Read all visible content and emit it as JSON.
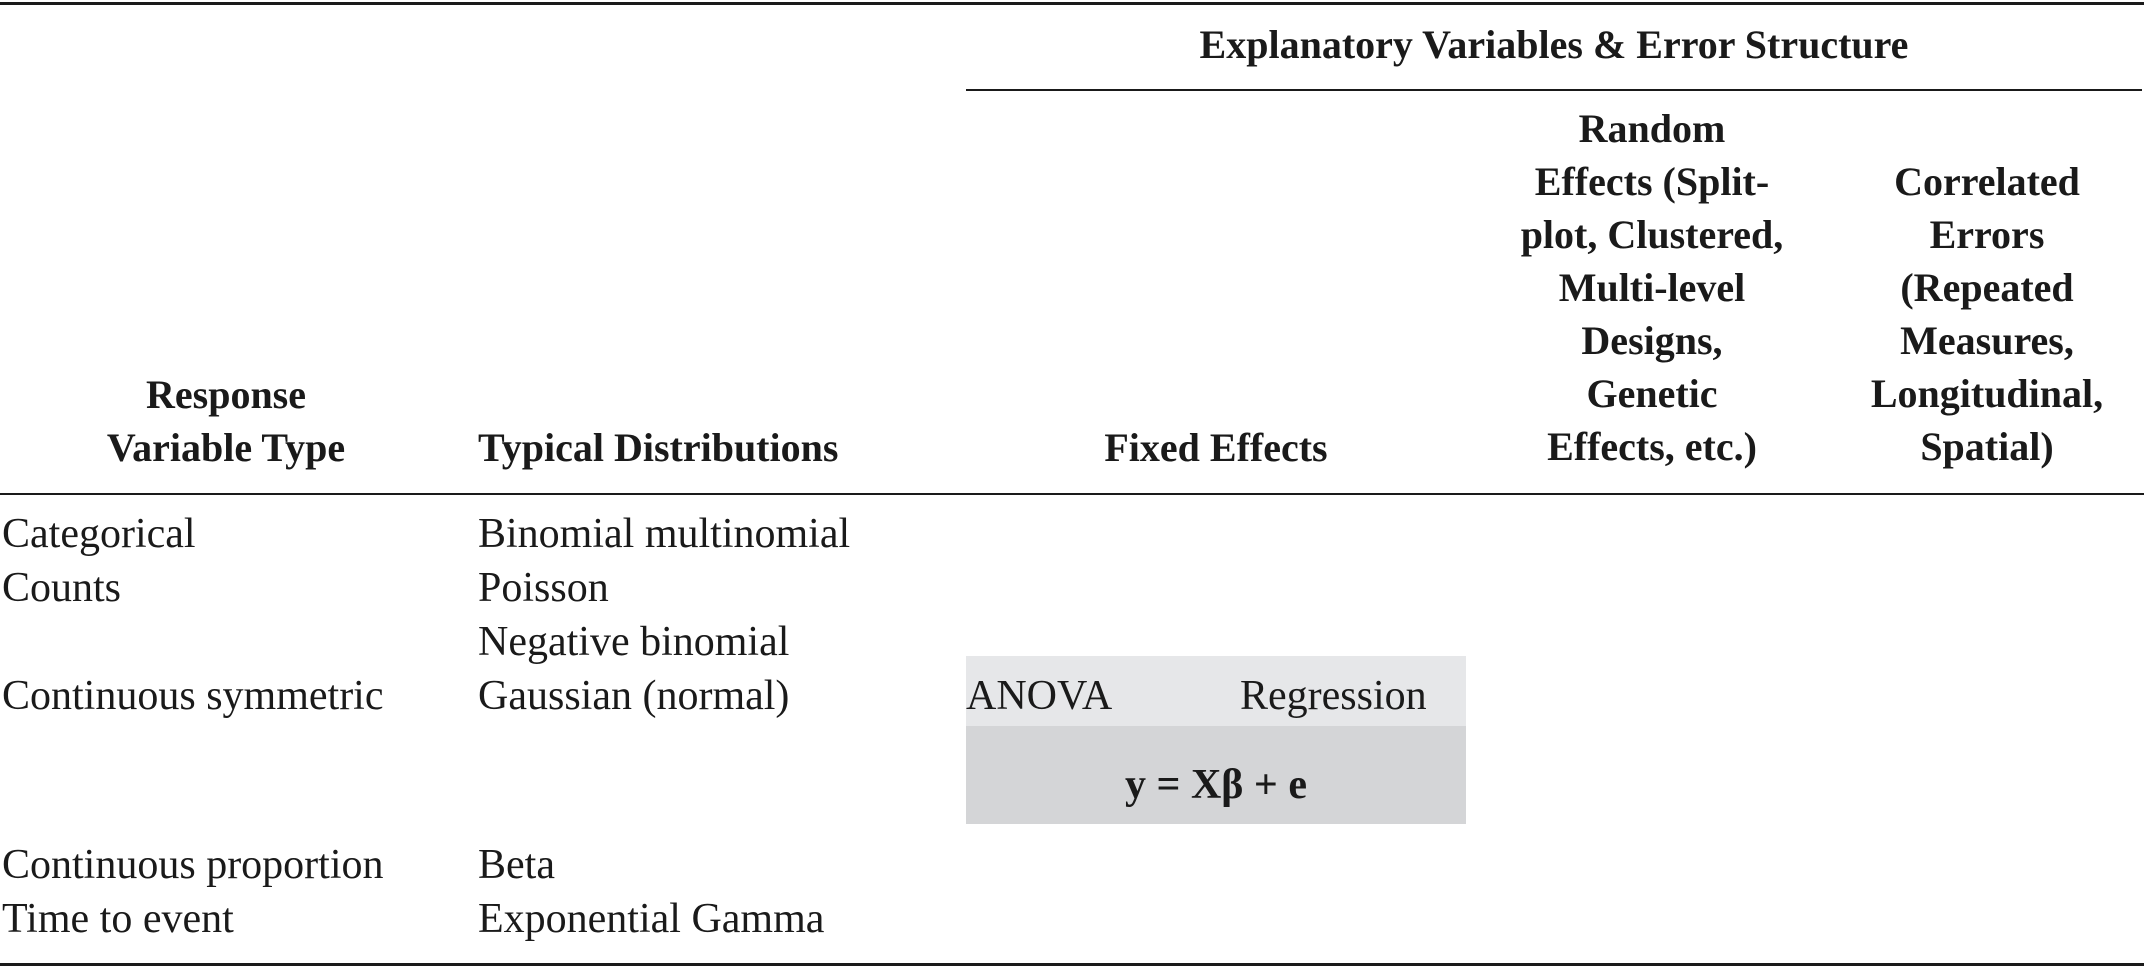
{
  "table": {
    "spanning_header": "Explanatory Variables & Error Structure",
    "columns": {
      "response_type": [
        "Response",
        "Variable Type"
      ],
      "distributions": [
        "Typical Distributions"
      ],
      "fixed_effects": [
        "Fixed Effects"
      ],
      "random_effects": [
        "Random",
        "Effects (Split-",
        "plot, Clustered,",
        "Multi-level",
        "Designs,",
        "Genetic",
        "Effects, etc.)"
      ],
      "correlated_errors": [
        "Correlated",
        "Errors",
        "(Repeated",
        "Measures,",
        "Longitudinal,",
        "Spatial)"
      ]
    },
    "rows": [
      {
        "response": "Categorical",
        "distribution": "Binomial multinomial"
      },
      {
        "response": "Counts",
        "distribution": "Poisson"
      },
      {
        "response": "",
        "distribution": "Negative binomial"
      },
      {
        "response": "Continuous symmetric",
        "distribution": "Gaussian (normal)"
      },
      {
        "response": "Continuous proportion",
        "distribution": "Beta"
      },
      {
        "response": "Time to event",
        "distribution": "Exponential Gamma"
      }
    ],
    "fixed_effects_box": {
      "left_label": "ANOVA",
      "right_label": "Regression",
      "formula": "y = Xβ + e"
    },
    "colors": {
      "shade_light": "#e6e7e9",
      "shade_dark": "#d4d5d7",
      "rule": "#1a1a1a"
    }
  }
}
